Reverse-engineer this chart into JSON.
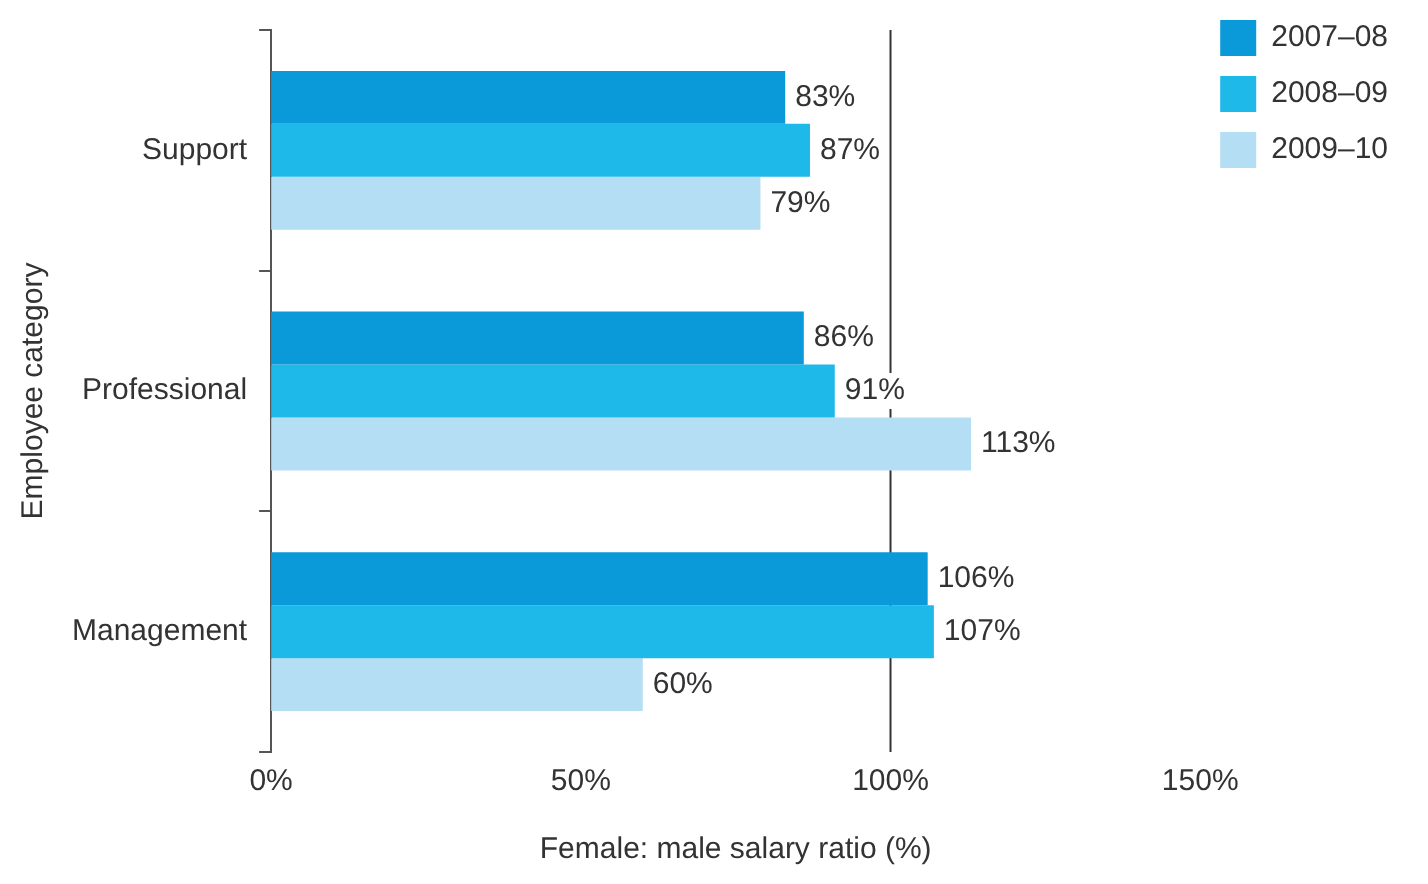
{
  "chart_data": {
    "type": "bar",
    "orientation": "horizontal",
    "xlabel": "Female: male salary ratio (%)",
    "ylabel": "Employee category",
    "categories": [
      "Support",
      "Professional",
      "Management"
    ],
    "series": [
      {
        "name": "2007–08",
        "color": "#0a99d9",
        "values": [
          83,
          86,
          106
        ],
        "value_labels": [
          "83%",
          "86%",
          "106%"
        ]
      },
      {
        "name": "2008–09",
        "color": "#1eb8e9",
        "values": [
          87,
          91,
          107
        ],
        "value_labels": [
          "87%",
          "91%",
          "107%"
        ]
      },
      {
        "name": "2009–10",
        "color": "#b3def4",
        "values": [
          79,
          113,
          60
        ],
        "value_labels": [
          "79%",
          "113%",
          "60%"
        ]
      }
    ],
    "xlim": [
      0,
      150
    ],
    "xticks": [
      {
        "value": 0,
        "label": "0%"
      },
      {
        "value": 50,
        "label": "50%"
      },
      {
        "value": 100,
        "label": "100%"
      },
      {
        "value": 150,
        "label": "150%"
      }
    ],
    "ref_lines": [
      {
        "axis": "x",
        "value": 100,
        "color": "#333333"
      }
    ],
    "legend": "top right"
  }
}
